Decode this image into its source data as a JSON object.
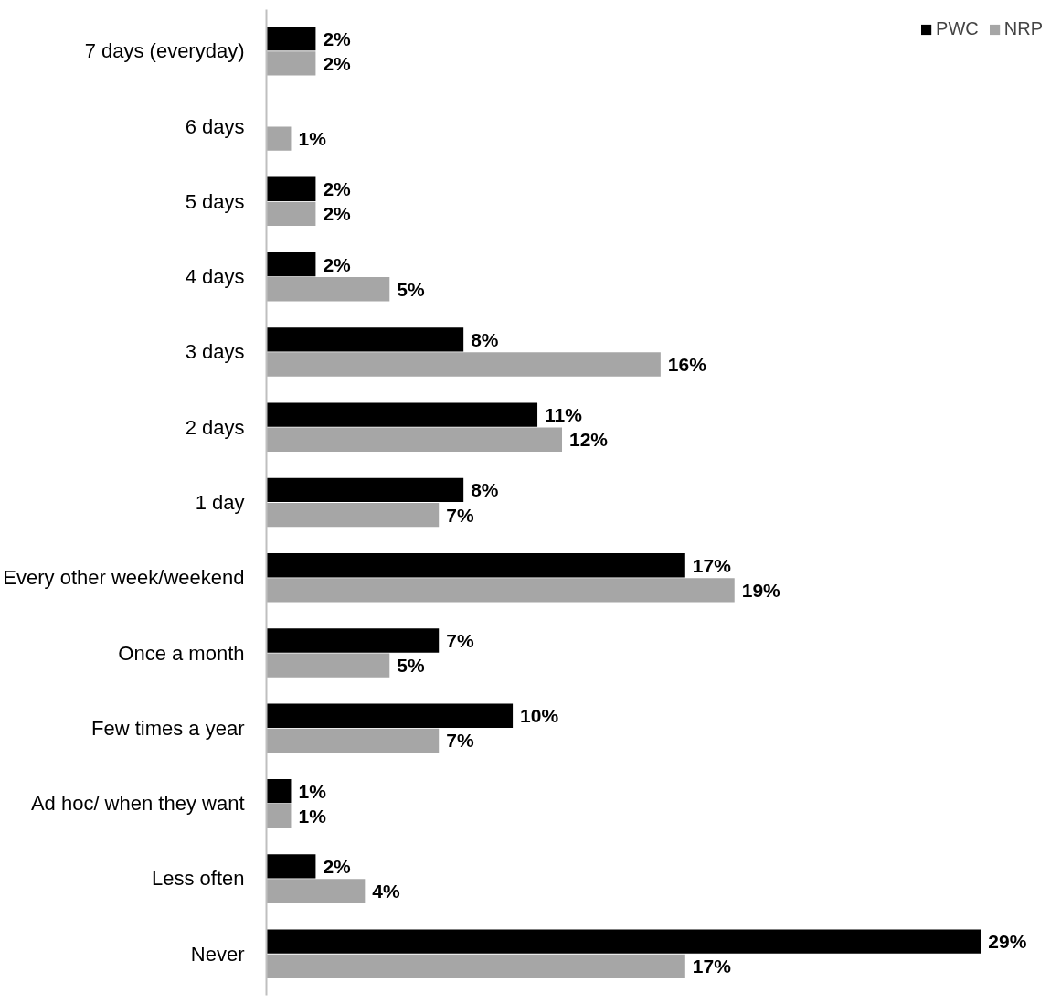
{
  "chart_data": {
    "type": "bar",
    "orientation": "horizontal",
    "categories": [
      "7 days (everyday)",
      "6 days",
      "5 days",
      "4 days",
      "3 days",
      "2 days",
      "1 day",
      "Every other week/weekend",
      "Once a month",
      "Few times a year",
      "Ad hoc/ when they want",
      "Less often",
      "Never"
    ],
    "series": [
      {
        "name": "PWC",
        "color": "#000000",
        "values": [
          2,
          null,
          2,
          2,
          8,
          11,
          8,
          17,
          7,
          10,
          1,
          2,
          29
        ],
        "value_labels": [
          "2%",
          null,
          "2%",
          "2%",
          "8%",
          "11%",
          "8%",
          "17%",
          "7%",
          "10%",
          "1%",
          "2%",
          "29%"
        ]
      },
      {
        "name": "NRP",
        "color": "#a6a6a6",
        "values": [
          2,
          1,
          2,
          5,
          16,
          12,
          7,
          19,
          5,
          7,
          1,
          4,
          17
        ],
        "value_labels": [
          "2%",
          "1%",
          "2%",
          "5%",
          "16%",
          "12%",
          "7%",
          "19%",
          "5%",
          "7%",
          "1%",
          "4%",
          "17%"
        ]
      }
    ],
    "legend": "top right",
    "grid": false
  }
}
